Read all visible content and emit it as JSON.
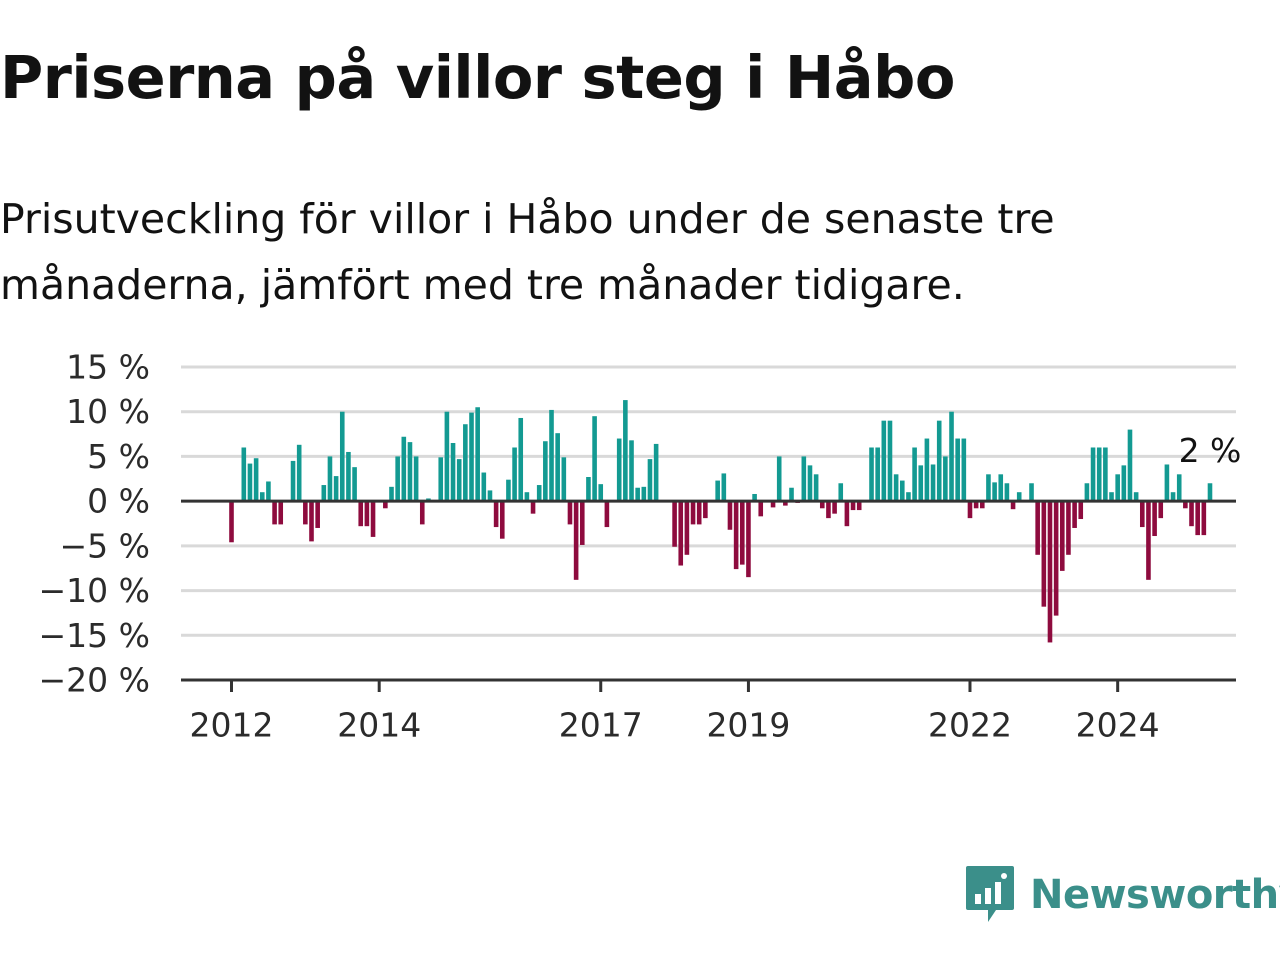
{
  "title": "Priserna på villor steg i Håbo",
  "subtitle": "Prisutveckling för villor i Håbo under de senaste tre månaderna, jämfört med tre månader tidigare.",
  "brand": {
    "name": "Newsworthy",
    "color": "#3b8f8a"
  },
  "colors": {
    "positive": "#139a92",
    "negative": "#8e0b3e",
    "grid": "#d9d9d9",
    "zero_line": "#333333"
  },
  "chart_data": {
    "type": "bar",
    "title": "",
    "xlabel": "",
    "ylabel": "",
    "ylim": [
      -20,
      15
    ],
    "y_ticks": [
      15,
      10,
      5,
      0,
      -5,
      -10,
      -15,
      -20
    ],
    "y_tick_labels": [
      "15 %",
      "10 %",
      "5 %",
      "0 %",
      "−5 %",
      "−10 %",
      "−15 %",
      "−20 %"
    ],
    "x_start": "2011-06",
    "x_ticks": [
      {
        "label": "2012",
        "index": 6
      },
      {
        "label": "2014",
        "index": 30
      },
      {
        "label": "2017",
        "index": 66
      },
      {
        "label": "2019",
        "index": 90
      },
      {
        "label": "2022",
        "index": 126
      },
      {
        "label": "2024",
        "index": 150
      }
    ],
    "grid": true,
    "end_label": "2 %",
    "values": [
      null,
      null,
      null,
      null,
      null,
      null,
      -4.6,
      null,
      6.0,
      4.2,
      4.8,
      1.0,
      2.2,
      -2.6,
      -2.6,
      null,
      4.5,
      6.3,
      -2.6,
      -4.5,
      -3.0,
      1.8,
      5.0,
      2.8,
      10.0,
      5.5,
      3.8,
      -2.8,
      -2.8,
      -4.0,
      null,
      -0.8,
      1.6,
      5.0,
      7.2,
      6.6,
      5.0,
      -2.6,
      0.3,
      null,
      4.9,
      10.0,
      6.5,
      4.7,
      8.6,
      9.9,
      10.5,
      3.2,
      1.2,
      -2.9,
      -4.2,
      2.4,
      6.0,
      9.3,
      1.0,
      -1.4,
      1.8,
      6.7,
      10.2,
      7.6,
      4.9,
      -2.6,
      -8.8,
      -4.9,
      2.7,
      9.5,
      1.9,
      -2.9,
      null,
      7.0,
      11.3,
      6.8,
      1.5,
      1.6,
      4.7,
      6.4,
      null,
      null,
      -5.1,
      -7.2,
      -6.0,
      -2.6,
      -2.6,
      -1.9,
      null,
      2.3,
      3.1,
      -3.2,
      -7.6,
      -7.1,
      -8.5,
      0.8,
      -1.7,
      null,
      -0.7,
      5.0,
      -0.5,
      1.5,
      -0.2,
      5.0,
      4.0,
      3.0,
      -0.8,
      -1.9,
      -1.4,
      2.0,
      -2.8,
      -1.0,
      -1.0,
      null,
      6.0,
      6.0,
      9.0,
      9.0,
      3.0,
      2.3,
      1.0,
      6.0,
      4.0,
      7.0,
      4.1,
      9.0,
      5.0,
      10.0,
      7.0,
      7.0,
      -1.9,
      -0.8,
      -0.8,
      3.0,
      2.1,
      3.0,
      2.0,
      -0.9,
      1.0,
      null,
      2.0,
      -6.0,
      -11.8,
      -15.8,
      -12.8,
      -7.8,
      -6.0,
      -3.0,
      -2.0,
      2.0,
      6.0,
      6.0,
      6.0,
      1.0,
      3.0,
      4.0,
      8.0,
      1.0,
      -2.9,
      -8.8,
      -3.9,
      -1.9,
      4.1,
      1.0,
      3.0,
      -0.8,
      -2.8,
      -3.8,
      -3.8,
      2.0
    ]
  }
}
